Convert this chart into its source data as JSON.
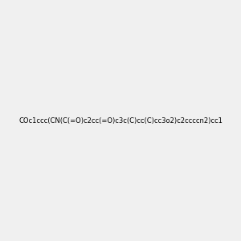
{
  "smiles": "COc1ccc(CN(C(=O)c2cc(=O)c3c(C)cc(C)cc3o2)c2ccccn2)cc1",
  "image_size": 300,
  "background_color": "#f0f0f0",
  "title": ""
}
